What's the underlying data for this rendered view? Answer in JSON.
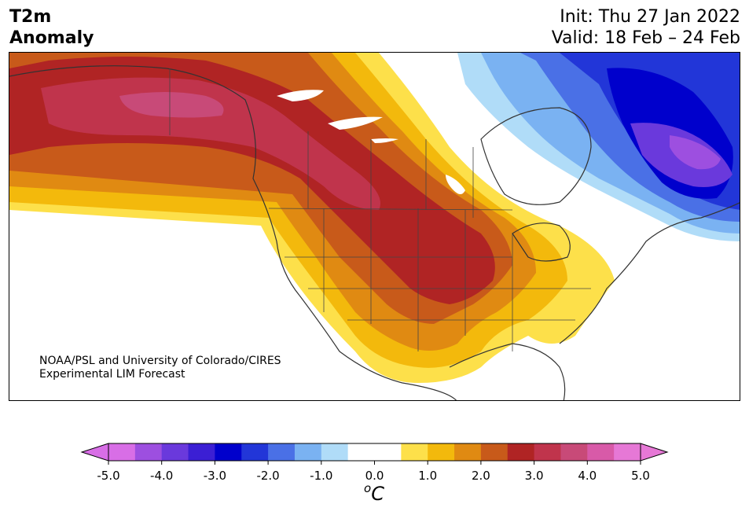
{
  "title": {
    "line1": "T2m",
    "line2": "Anomaly"
  },
  "info": {
    "init": "Init: Thu 27 Jan 2022",
    "valid": "Valid: 18 Feb – 24 Feb"
  },
  "credit": {
    "line1": "NOAA/PSL and University of Colorado/CIRES",
    "line2": "Experimental LIM Forecast"
  },
  "colorbar": {
    "unit_sup": "o",
    "unit_main": "C",
    "colors": [
      "#d86ee6",
      "#9d4fe0",
      "#6a39dc",
      "#3b1fd4",
      "#0000cc",
      "#2236d8",
      "#4a70e6",
      "#7ab2f2",
      "#b0dcf8",
      "#ffffff",
      "#ffffff",
      "#fde04a",
      "#f3b90c",
      "#e08a12",
      "#c85a1a",
      "#b02424",
      "#c0344c",
      "#c84a78",
      "#d85aa8",
      "#e678d6"
    ],
    "end_colors": [
      "#d86ee6",
      "#e678d6"
    ],
    "tick_labels": [
      "-5.0",
      "-4.0",
      "-3.0",
      "-2.0",
      "-1.0",
      "0.0",
      "1.0",
      "2.0",
      "3.0",
      "4.0",
      "5.0"
    ]
  }
}
